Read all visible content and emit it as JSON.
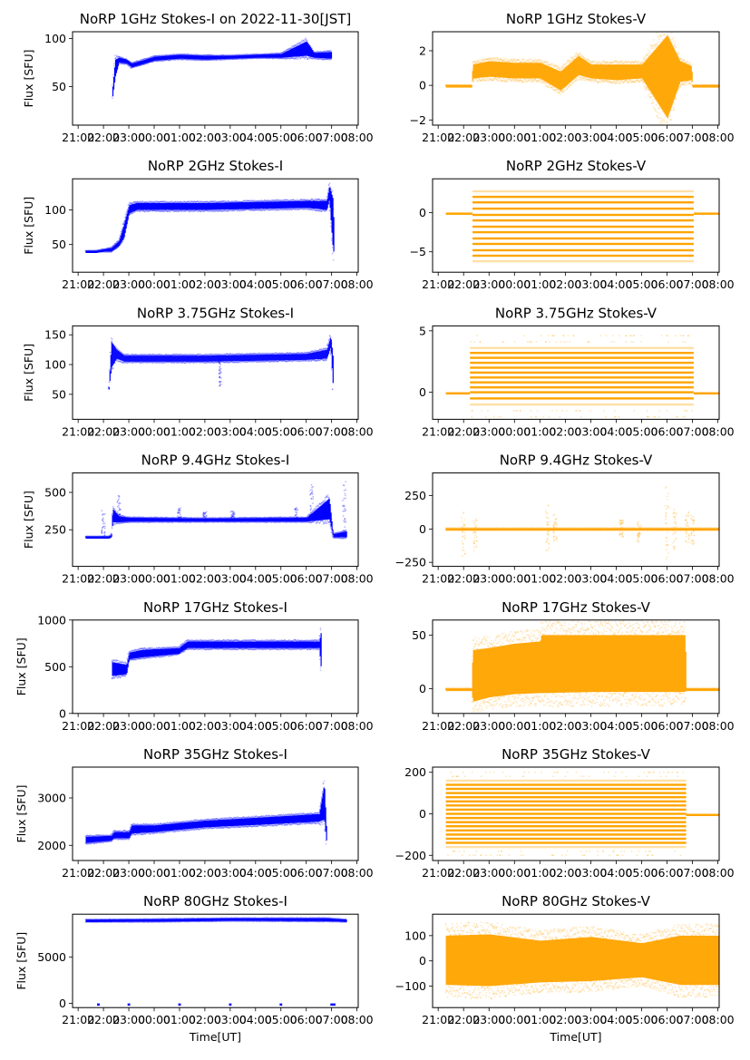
{
  "figure": {
    "date_note": "on 2022-11-30[JST]"
  },
  "chart_data": [
    {
      "type": "scatter",
      "title": "NoRP 1GHz Stokes-I on 2022-11-30[JST]",
      "xlabel": "",
      "ylabel": "Flux [SFU]",
      "color": "#0000ff",
      "ylim": [
        10,
        107
      ],
      "yticks": [
        50,
        100
      ],
      "bands": [
        [
          1.35,
          40,
          50
        ],
        [
          1.45,
          60,
          78
        ],
        [
          1.6,
          75,
          80
        ],
        [
          1.9,
          74,
          78
        ],
        [
          2.1,
          70,
          74
        ],
        [
          2.5,
          73,
          77
        ],
        [
          3,
          77,
          81
        ],
        [
          4,
          79,
          83
        ],
        [
          5,
          78,
          82
        ],
        [
          6,
          79,
          82
        ],
        [
          7,
          80,
          83
        ],
        [
          8,
          80,
          84
        ],
        [
          9,
          82,
          97
        ],
        [
          9.3,
          80,
          85
        ],
        [
          10,
          79,
          86
        ]
      ]
    },
    {
      "type": "scatter",
      "title": "NoRP 1GHz Stokes-V",
      "xlabel": "",
      "ylabel": "",
      "color": "#ffa500",
      "ylim": [
        -2.3,
        3.1
      ],
      "yticks": [
        -2,
        0,
        2
      ],
      "bands": [
        [
          0.3,
          0,
          0
        ],
        [
          1.3,
          0,
          0
        ],
        [
          1.35,
          0.4,
          1.2
        ],
        [
          2,
          0.5,
          1.4
        ],
        [
          3,
          0.4,
          1.3
        ],
        [
          4,
          0.4,
          1.3
        ],
        [
          4.8,
          -0.3,
          0.8
        ],
        [
          5.5,
          0.6,
          1.7
        ],
        [
          6,
          0.4,
          1.2
        ],
        [
          7,
          0.3,
          1.2
        ],
        [
          8,
          0.4,
          1.2
        ],
        [
          9,
          -1.9,
          2.9
        ],
        [
          9.5,
          0.2,
          1.4
        ],
        [
          9.95,
          0.3,
          1.1
        ],
        [
          10,
          0,
          0
        ],
        [
          11.6,
          0,
          0
        ]
      ]
    },
    {
      "type": "scatter",
      "title": "NoRP 2GHz Stokes-I",
      "xlabel": "",
      "ylabel": "Flux [SFU]",
      "color": "#0000ff",
      "ylim": [
        10,
        145
      ],
      "yticks": [
        50,
        100
      ],
      "bands": [
        [
          0.3,
          40,
          41
        ],
        [
          0.7,
          40,
          41
        ],
        [
          1.3,
          40,
          45
        ],
        [
          1.6,
          48,
          55
        ],
        [
          1.8,
          60,
          80
        ],
        [
          2.0,
          95,
          107
        ],
        [
          2.3,
          100,
          110
        ],
        [
          5,
          100,
          110
        ],
        [
          9,
          103,
          113
        ],
        [
          9.8,
          100,
          113
        ],
        [
          9.9,
          115,
          135
        ],
        [
          10.05,
          40,
          115
        ],
        [
          10.1,
          40,
          42
        ]
      ]
    },
    {
      "type": "scatter",
      "title": "NoRP 2GHz Stokes-V",
      "xlabel": "",
      "ylabel": "",
      "color": "#ffa500",
      "ylim": [
        -7.6,
        4.3
      ],
      "yticks": [
        -5,
        0
      ],
      "levels": [
        2.7,
        2,
        1.3,
        0.5,
        -0.3,
        -1,
        -1.8,
        -2.5,
        -3.3,
        -4,
        -4.8,
        -5.5,
        -6.2
      ],
      "active_range": [
        1.35,
        10.05
      ],
      "flat_zero": [
        [
          0.3,
          1.35
        ],
        [
          10.05,
          11.6
        ]
      ]
    },
    {
      "type": "scatter",
      "title": "NoRP 3.75GHz Stokes-I",
      "xlabel": "",
      "ylabel": "Flux [SFU]",
      "color": "#0000ff",
      "ylim": [
        8,
        165
      ],
      "yticks": [
        50,
        100,
        150
      ],
      "bands": [
        [
          1.2,
          60,
          62
        ],
        [
          1.3,
          95,
          138
        ],
        [
          1.5,
          110,
          125
        ],
        [
          1.8,
          105,
          115
        ],
        [
          5,
          105,
          115
        ],
        [
          9,
          108,
          118
        ],
        [
          9.8,
          110,
          125
        ],
        [
          9.95,
          130,
          148
        ],
        [
          10.05,
          60,
          110
        ]
      ],
      "dip": {
        "x": 5.6,
        "low": 62,
        "high": 110
      }
    },
    {
      "type": "scatter",
      "title": "NoRP 3.75GHz Stokes-V",
      "xlabel": "",
      "ylabel": "",
      "color": "#ffa500",
      "ylim": [
        -2.2,
        5.4
      ],
      "yticks": [
        0,
        5
      ],
      "levels": [
        -1,
        -0.5,
        0,
        0.4,
        0.8,
        1.2,
        1.6,
        2.0,
        2.4,
        2.8,
        3.2,
        3.6
      ],
      "active_range": [
        1.25,
        10.05
      ],
      "flat_zero": [
        [
          0.3,
          1.25
        ],
        [
          10.05,
          11.6
        ]
      ]
    },
    {
      "type": "scatter",
      "title": "NoRP 9.4GHz Stokes-I",
      "xlabel": "",
      "ylabel": "Flux [SFU]",
      "color": "#0000ff",
      "ylim": [
        5,
        630
      ],
      "yticks": [
        250,
        500
      ],
      "bands": [
        [
          0.3,
          200,
          205
        ],
        [
          0.8,
          200,
          205
        ],
        [
          1.2,
          200,
          205
        ],
        [
          1.3,
          200,
          215
        ],
        [
          1.35,
          300,
          390
        ],
        [
          1.6,
          300,
          340
        ],
        [
          2,
          305,
          330
        ],
        [
          5,
          305,
          325
        ],
        [
          9,
          305,
          330
        ],
        [
          9.9,
          320,
          460
        ],
        [
          10.05,
          200,
          220
        ],
        [
          10.6,
          200,
          240
        ]
      ],
      "spikes": [
        [
          1.0,
          380
        ],
        [
          1.6,
          480
        ],
        [
          4.0,
          400
        ],
        [
          5.0,
          370
        ],
        [
          6.1,
          380
        ],
        [
          8.6,
          400
        ],
        [
          9.2,
          550
        ],
        [
          10.5,
          580
        ]
      ]
    },
    {
      "type": "scatter",
      "title": "NoRP 9.4GHz Stokes-V",
      "xlabel": "",
      "ylabel": "",
      "color": "#ffa500",
      "ylim": [
        -280,
        420
      ],
      "yticks": [
        -250,
        0,
        250
      ],
      "bands": [
        [
          0.3,
          -5,
          5
        ],
        [
          11.6,
          -5,
          5
        ]
      ],
      "spikes": [
        [
          1.0,
          140,
          -200
        ],
        [
          1.45,
          80,
          -170
        ],
        [
          4.3,
          180,
          -170
        ],
        [
          4.6,
          110,
          -90
        ],
        [
          7.2,
          70,
          -60
        ],
        [
          7.9,
          70,
          -100
        ],
        [
          9.0,
          330,
          -240
        ],
        [
          9.3,
          150,
          -160
        ],
        [
          9.8,
          130,
          -130
        ],
        [
          10.0,
          110,
          -120
        ],
        [
          11.5,
          240,
          -270
        ]
      ]
    },
    {
      "type": "scatter",
      "title": "NoRP 17GHz Stokes-I",
      "xlabel": "",
      "ylabel": "Flux [SFU]",
      "color": "#0000ff",
      "ylim": [
        0,
        1000
      ],
      "yticks": [
        0,
        500,
        1000
      ],
      "bands": [
        [
          1.3,
          400,
          550
        ],
        [
          1.9,
          420,
          520
        ],
        [
          2.0,
          580,
          650
        ],
        [
          2.5,
          600,
          680
        ],
        [
          4.0,
          640,
          700
        ],
        [
          4.0,
          650,
          710
        ],
        [
          4.3,
          700,
          770
        ],
        [
          6,
          700,
          770
        ],
        [
          9.5,
          700,
          770
        ],
        [
          9.6,
          400,
          910
        ]
      ],
      "zeros": [
        [
          0.3,
          1.3
        ],
        [
          2.95,
          3.05
        ],
        [
          4.95,
          5.05
        ],
        [
          6.95,
          7.05
        ],
        [
          8.95,
          9.05
        ],
        [
          9.6,
          10.6
        ]
      ]
    },
    {
      "type": "scatter",
      "title": "NoRP 17GHz Stokes-V",
      "xlabel": "",
      "ylabel": "",
      "color": "#ffa500",
      "ylim": [
        -23,
        64
      ],
      "yticks": [
        0,
        50
      ],
      "bands": [
        [
          0.3,
          0,
          0
        ],
        [
          1.3,
          0,
          0
        ],
        [
          1.35,
          -12,
          36
        ],
        [
          2.0,
          -8,
          38
        ],
        [
          3.0,
          -5,
          42
        ],
        [
          4.0,
          -4,
          44
        ],
        [
          4.05,
          -4,
          50
        ],
        [
          6,
          -3,
          50
        ],
        [
          9.7,
          -3,
          50
        ],
        [
          9.75,
          0,
          0
        ],
        [
          11.6,
          0,
          0
        ]
      ]
    },
    {
      "type": "scatter",
      "title": "NoRP 35GHz Stokes-I",
      "xlabel": "",
      "ylabel": "Flux [SFU]",
      "color": "#0000ff",
      "ylim": [
        1680,
        3650
      ],
      "yticks": [
        2000,
        3000
      ],
      "bands": [
        [
          0.3,
          2050,
          2180
        ],
        [
          1.3,
          2100,
          2200
        ],
        [
          1.4,
          2150,
          2280
        ],
        [
          2.0,
          2150,
          2280
        ],
        [
          2.1,
          2250,
          2420
        ],
        [
          3,
          2280,
          2420
        ],
        [
          5,
          2380,
          2520
        ],
        [
          7,
          2430,
          2580
        ],
        [
          9.5,
          2500,
          2660
        ],
        [
          9.7,
          2550,
          3300
        ],
        [
          9.8,
          2000,
          2200
        ]
      ]
    },
    {
      "type": "scatter",
      "title": "NoRP 35GHz Stokes-V",
      "xlabel": "",
      "ylabel": "",
      "color": "#ffa500",
      "ylim": [
        -225,
        225
      ],
      "yticks": [
        -200,
        0,
        200
      ],
      "levels": [
        -160,
        -140,
        -120,
        -100,
        -80,
        -60,
        -40,
        -20,
        0,
        20,
        40,
        60,
        80,
        100,
        120,
        140,
        160
      ],
      "active_range": [
        0.3,
        9.75
      ],
      "flat_zero": [
        [
          9.75,
          11.6
        ]
      ]
    },
    {
      "type": "scatter",
      "title": "NoRP 80GHz Stokes-I",
      "xlabel": "Time[UT]",
      "ylabel": "Flux [SFU]",
      "color": "#0000ff",
      "ylim": [
        -450,
        9600
      ],
      "yticks": [
        0,
        5000
      ],
      "bands": [
        [
          0.3,
          8800,
          9000
        ],
        [
          3,
          8800,
          9050
        ],
        [
          6,
          8900,
          9150
        ],
        [
          9.8,
          8850,
          9150
        ],
        [
          10.6,
          8800,
          9000
        ]
      ],
      "zeros": [
        [
          0.75,
          0.85
        ],
        [
          1.95,
          2.05
        ],
        [
          3.95,
          4.05
        ],
        [
          5.95,
          6.05
        ],
        [
          7.95,
          8.05
        ],
        [
          9.95,
          10.15
        ]
      ]
    },
    {
      "type": "scatter",
      "title": "NoRP 80GHz Stokes-V",
      "xlabel": "Time[UT]",
      "ylabel": "",
      "color": "#ffa500",
      "ylim": [
        -185,
        185
      ],
      "yticks": [
        -100,
        0,
        100
      ],
      "bands": [
        [
          0.3,
          -95,
          100
        ],
        [
          2,
          -100,
          105
        ],
        [
          4,
          -85,
          80
        ],
        [
          6,
          -80,
          95
        ],
        [
          8,
          -65,
          70
        ],
        [
          9.5,
          -95,
          100
        ],
        [
          11.6,
          -95,
          100
        ]
      ]
    }
  ],
  "x_axis": {
    "xlim_hours_since_21": [
      -0.22,
      11.05
    ],
    "tick_labels": [
      "21:00",
      "22:00",
      "23:00",
      "00:00",
      "01:00",
      "02:00",
      "03:00",
      "04:00",
      "05:00",
      "06:00",
      "07:00",
      "08:00"
    ]
  }
}
